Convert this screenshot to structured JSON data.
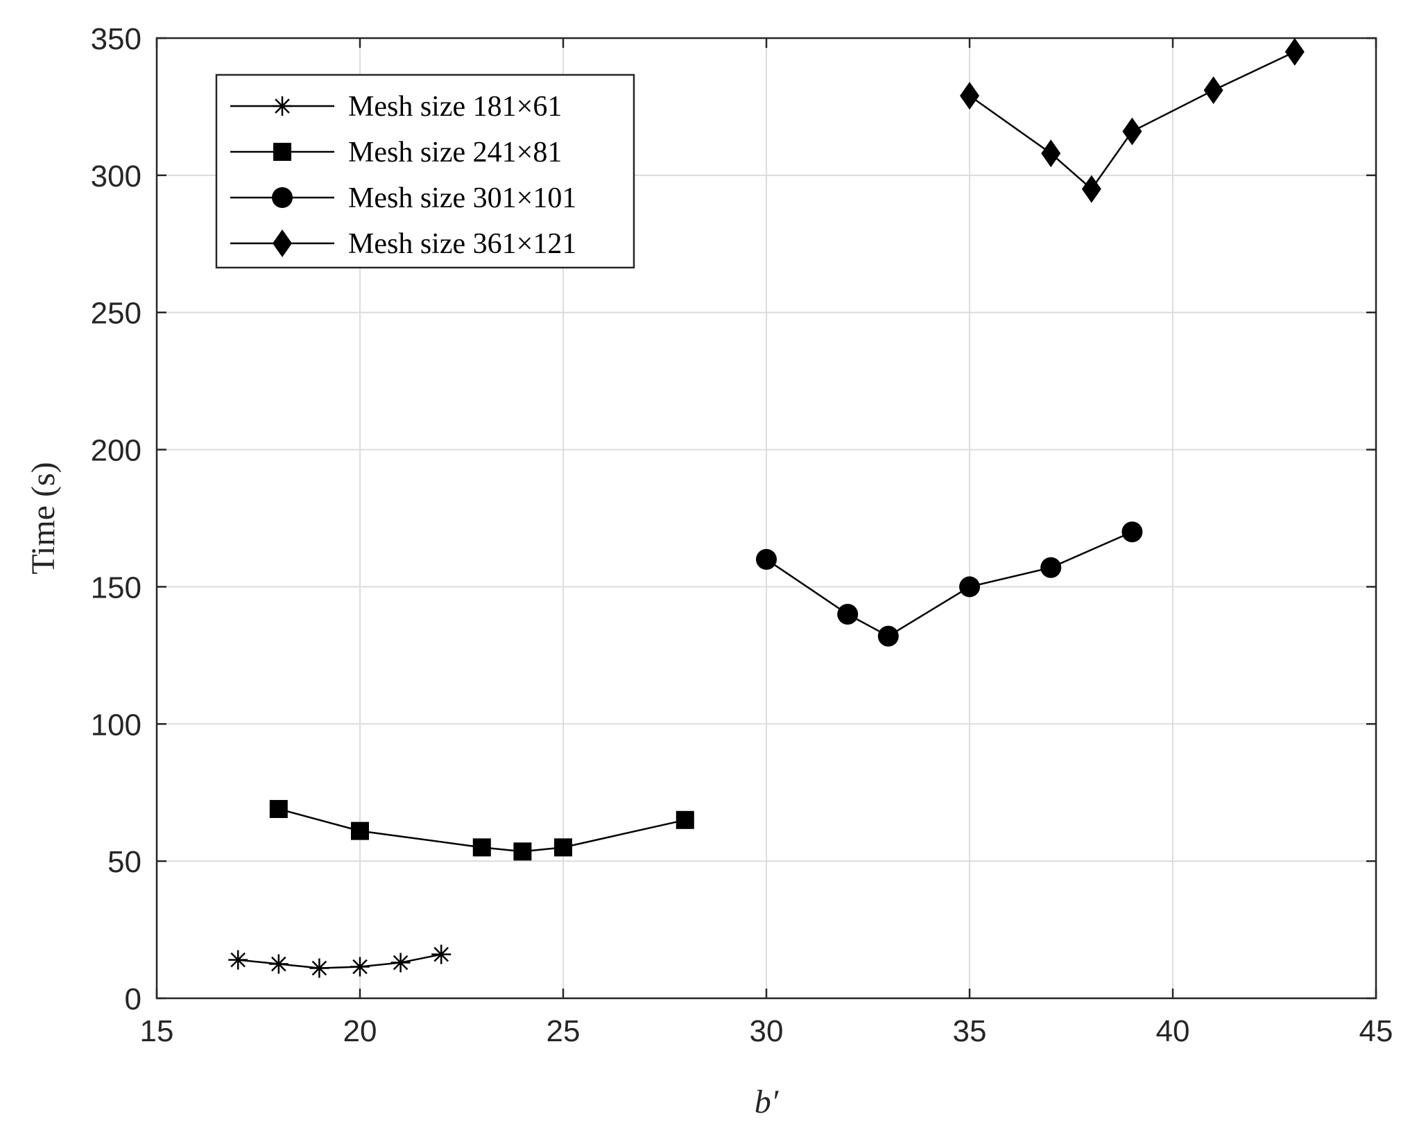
{
  "chart_data": {
    "type": "line",
    "title": "",
    "xlabel": "b′",
    "ylabel": "Time (s)",
    "xlim": [
      15,
      45
    ],
    "ylim": [
      0,
      350
    ],
    "xticks": [
      15,
      20,
      25,
      30,
      35,
      40,
      45
    ],
    "yticks": [
      0,
      50,
      100,
      150,
      200,
      250,
      300,
      350
    ],
    "grid": true,
    "legend_position": "top-left",
    "series": [
      {
        "name": "Mesh size 181×61",
        "marker": "asterisk",
        "x": [
          17,
          18,
          19,
          20,
          21,
          22
        ],
        "y": [
          14,
          12.5,
          11,
          11.5,
          13,
          16
        ]
      },
      {
        "name": "Mesh size 241×81",
        "marker": "square",
        "x": [
          18,
          20,
          23,
          24,
          25,
          28
        ],
        "y": [
          69,
          61,
          55,
          53.5,
          55,
          65
        ]
      },
      {
        "name": "Mesh size 301×101",
        "marker": "circle",
        "x": [
          30,
          32,
          33,
          35,
          37,
          39
        ],
        "y": [
          160,
          140,
          132,
          150,
          157,
          170
        ]
      },
      {
        "name": "Mesh size 361×121",
        "marker": "diamond",
        "x": [
          35,
          37,
          38,
          39,
          41,
          43
        ],
        "y": [
          329,
          308,
          295,
          316,
          331,
          345
        ]
      }
    ]
  }
}
